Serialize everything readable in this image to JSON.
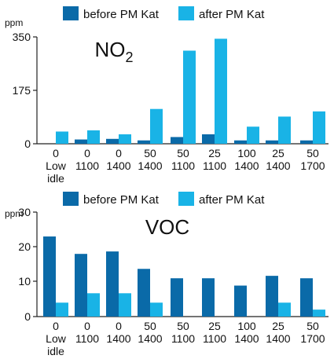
{
  "chart_data": [
    {
      "type": "bar",
      "title": "NO",
      "title_subscript": "2",
      "ylabel": "ppm",
      "ylim": [
        0,
        350
      ],
      "yticks": [
        "350",
        "175",
        "0"
      ],
      "grid": false,
      "legend_position": "top",
      "categories": [
        [
          "0",
          "Low",
          "idle"
        ],
        [
          "0",
          "1100"
        ],
        [
          "0",
          "1400"
        ],
        [
          "50",
          "1400"
        ],
        [
          "50",
          "1100"
        ],
        [
          "25",
          "1100"
        ],
        [
          "100",
          "1400"
        ],
        [
          "25",
          "1400"
        ],
        [
          "50",
          "1700"
        ]
      ],
      "series": [
        {
          "name": "before PM Kat",
          "color": "#0a6aa8",
          "values": [
            0,
            14,
            16,
            11,
            22,
            31,
            11,
            11,
            11
          ]
        },
        {
          "name": "after PM Kat",
          "color": "#19b3e6",
          "values": [
            40,
            44,
            31,
            114,
            305,
            344,
            56,
            89,
            106
          ]
        }
      ]
    },
    {
      "type": "bar",
      "title": "VOC",
      "ylabel": "ppm",
      "ylim": [
        0,
        30
      ],
      "yticks": [
        "30",
        "20",
        "10",
        "0"
      ],
      "grid": false,
      "legend_position": "top",
      "categories": [
        [
          "0",
          "Low",
          "idle"
        ],
        [
          "0",
          "1100"
        ],
        [
          "0",
          "1400"
        ],
        [
          "50",
          "1400"
        ],
        [
          "50",
          "1100"
        ],
        [
          "25",
          "1100"
        ],
        [
          "100",
          "1400"
        ],
        [
          "25",
          "1400"
        ],
        [
          "50",
          "1700"
        ]
      ],
      "series": [
        {
          "name": "before PM Kat",
          "color": "#0a6aa8",
          "values": [
            23,
            18,
            18.7,
            13.7,
            11,
            11,
            8.9,
            11.7,
            11
          ]
        },
        {
          "name": "after PM Kat",
          "color": "#19b3e6",
          "values": [
            4,
            6.7,
            6.7,
            4,
            0,
            0,
            0,
            4,
            2
          ]
        }
      ]
    }
  ]
}
